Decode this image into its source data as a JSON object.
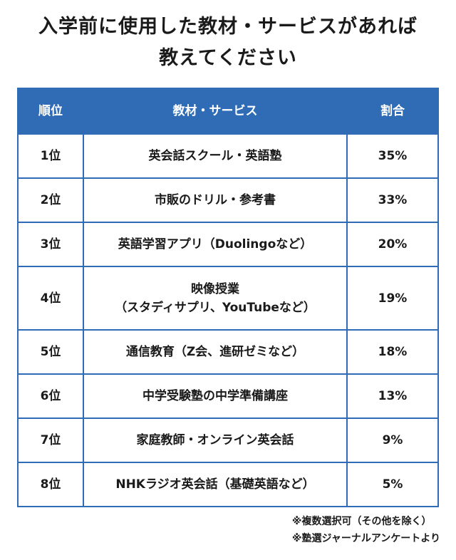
{
  "title": {
    "line1": "入学前に使用した教材・サービスがあれば",
    "line2": "教えてください"
  },
  "chart_data": {
    "type": "table",
    "columns": [
      "順位",
      "教材・サービス",
      "割合"
    ],
    "rows": [
      {
        "rank": "1位",
        "name": [
          "英会話スクール・英語塾"
        ],
        "percent": "35%",
        "value": 35
      },
      {
        "rank": "2位",
        "name": [
          "市販のドリル・参考書"
        ],
        "percent": "33%",
        "value": 33
      },
      {
        "rank": "3位",
        "name": [
          "英語学習アプリ（Duolingoなど）"
        ],
        "percent": "20%",
        "value": 20
      },
      {
        "rank": "4位",
        "name": [
          "映像授業",
          "（スタディサプリ、YouTubeなど）"
        ],
        "percent": "19%",
        "value": 19
      },
      {
        "rank": "5位",
        "name": [
          "通信教育（Z会、進研ゼミなど）"
        ],
        "percent": "18%",
        "value": 18
      },
      {
        "rank": "6位",
        "name": [
          "中学受験塾の中学準備講座"
        ],
        "percent": "13%",
        "value": 13
      },
      {
        "rank": "7位",
        "name": [
          "家庭教師・オンライン英会話"
        ],
        "percent": "9%",
        "value": 9
      },
      {
        "rank": "8位",
        "name": [
          "NHKラジオ英会話（基礎英語など）"
        ],
        "percent": "5%",
        "value": 5
      }
    ]
  },
  "notes": {
    "line1": "※複数選択可（その他を除く）",
    "line2": "※塾選ジャーナルアンケートより"
  },
  "colors": {
    "accent": "#2f6cb5",
    "header_text": "#ffffff",
    "text": "#1a1a1a"
  }
}
